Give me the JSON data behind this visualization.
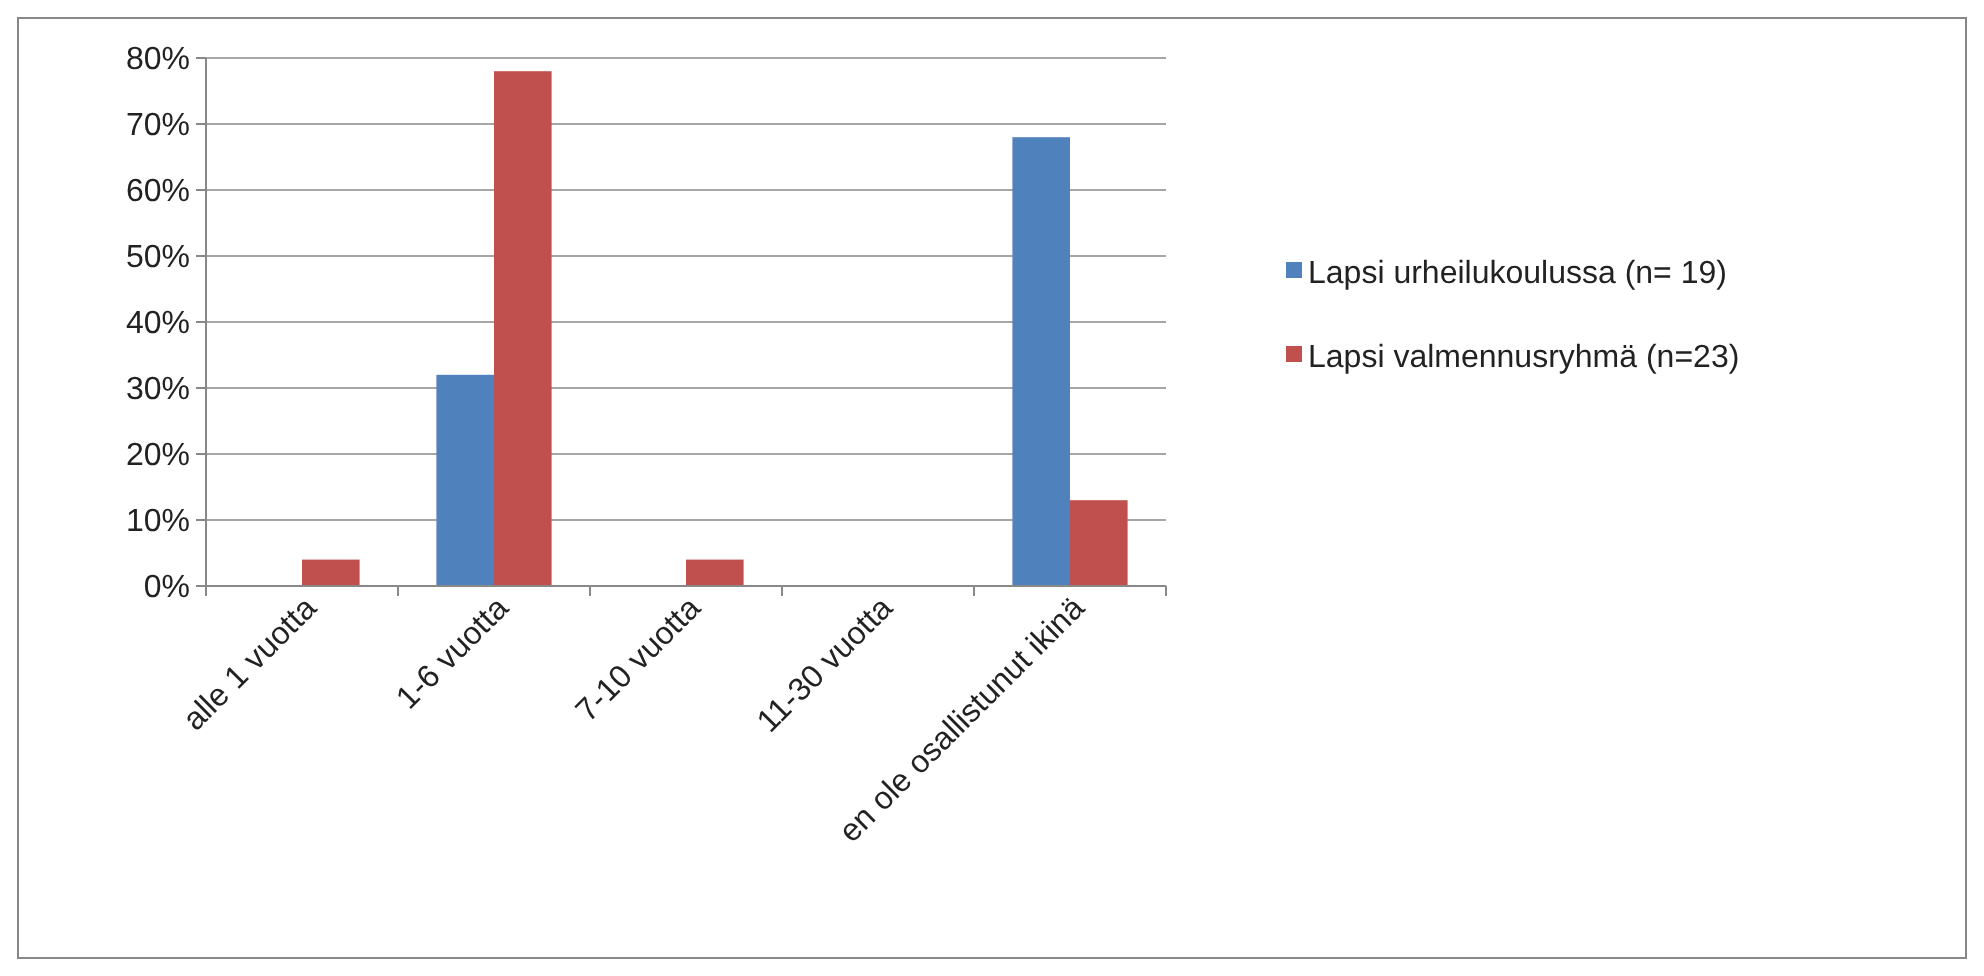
{
  "chart_data": {
    "type": "bar",
    "categories": [
      "alle 1 vuotta",
      "1-6 vuotta",
      "7-10 vuotta",
      "11-30 vuotta",
      "en ole osallistunut ikinä"
    ],
    "series": [
      {
        "name": "Lapsi urheilukoulussa (n= 19)",
        "color": "#4f81bd",
        "values": [
          0,
          32,
          0,
          0,
          68
        ]
      },
      {
        "name": "Lapsi valmennusryhmä (n=23)",
        "color": "#c0504d",
        "values": [
          4,
          78,
          4,
          0,
          13
        ]
      }
    ],
    "ylim": [
      0,
      80
    ],
    "yticks": [
      {
        "value": 0,
        "label": "0%"
      },
      {
        "value": 10,
        "label": "10%"
      },
      {
        "value": 20,
        "label": "20%"
      },
      {
        "value": 30,
        "label": "30%"
      },
      {
        "value": 40,
        "label": "40%"
      },
      {
        "value": 50,
        "label": "50%"
      },
      {
        "value": 60,
        "label": "60%"
      },
      {
        "value": 70,
        "label": "70%"
      },
      {
        "value": 80,
        "label": "80%"
      }
    ],
    "grid": "y",
    "legend": "right"
  }
}
